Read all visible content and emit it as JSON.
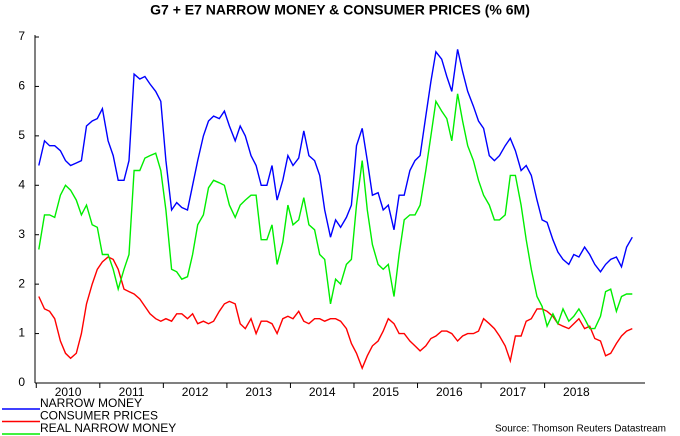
{
  "chart_data": {
    "type": "line",
    "title": "G7 + E7 NARROW MONEY & CONSUMER PRICES (% 6M)",
    "source": "Source: Thomson Reuters Datastream",
    "x": [
      2010.04,
      2010.13,
      2010.21,
      2010.29,
      2010.38,
      2010.46,
      2010.54,
      2010.63,
      2010.71,
      2010.79,
      2010.88,
      2010.96,
      2011.04,
      2011.13,
      2011.21,
      2011.29,
      2011.38,
      2011.46,
      2011.54,
      2011.63,
      2011.71,
      2011.79,
      2011.88,
      2011.96,
      2012.04,
      2012.13,
      2012.21,
      2012.29,
      2012.38,
      2012.46,
      2012.54,
      2012.63,
      2012.71,
      2012.79,
      2012.88,
      2012.96,
      2013.04,
      2013.13,
      2013.21,
      2013.29,
      2013.38,
      2013.46,
      2013.54,
      2013.63,
      2013.71,
      2013.79,
      2013.88,
      2013.96,
      2014.04,
      2014.13,
      2014.21,
      2014.29,
      2014.38,
      2014.46,
      2014.54,
      2014.63,
      2014.71,
      2014.79,
      2014.88,
      2014.96,
      2015.04,
      2015.13,
      2015.21,
      2015.29,
      2015.38,
      2015.46,
      2015.54,
      2015.63,
      2015.71,
      2015.79,
      2015.88,
      2015.96,
      2016.04,
      2016.13,
      2016.21,
      2016.29,
      2016.38,
      2016.46,
      2016.54,
      2016.63,
      2016.71,
      2016.79,
      2016.88,
      2016.96,
      2017.04,
      2017.13,
      2017.21,
      2017.29,
      2017.38,
      2017.46,
      2017.54,
      2017.63,
      2017.71,
      2017.79,
      2017.88,
      2017.96,
      2018.04,
      2018.13,
      2018.21,
      2018.29,
      2018.38,
      2018.46,
      2018.54,
      2018.63,
      2018.71,
      2018.79,
      2018.88,
      2018.96,
      2019.04,
      2019.13,
      2019.21,
      2019.29,
      2019.38
    ],
    "series": [
      {
        "name": "NARROW MONEY",
        "color": "#0000ff",
        "values": [
          4.4,
          4.9,
          4.8,
          4.8,
          4.7,
          4.5,
          4.4,
          4.45,
          4.5,
          5.2,
          5.3,
          5.35,
          5.55,
          4.9,
          4.6,
          4.1,
          4.1,
          4.5,
          6.25,
          6.15,
          6.2,
          6.05,
          5.9,
          5.7,
          4.5,
          3.5,
          3.65,
          3.55,
          3.5,
          4.0,
          4.5,
          5.0,
          5.3,
          5.4,
          5.35,
          5.5,
          5.2,
          4.9,
          5.2,
          5.0,
          4.6,
          4.4,
          4.0,
          4.0,
          4.4,
          3.7,
          4.1,
          4.6,
          4.4,
          4.55,
          5.1,
          4.6,
          4.5,
          4.2,
          3.5,
          2.95,
          3.3,
          3.15,
          3.35,
          3.6,
          4.8,
          5.15,
          4.5,
          3.8,
          3.85,
          3.5,
          3.6,
          3.1,
          3.8,
          3.8,
          4.3,
          4.5,
          4.6,
          5.4,
          6.1,
          6.7,
          6.55,
          6.2,
          5.9,
          6.75,
          6.3,
          5.9,
          5.6,
          5.3,
          5.15,
          4.6,
          4.5,
          4.6,
          4.8,
          4.95,
          4.7,
          4.3,
          4.4,
          4.2,
          3.7,
          3.3,
          3.25,
          2.9,
          2.65,
          2.5,
          2.4,
          2.6,
          2.55,
          2.75,
          2.6,
          2.4,
          2.25,
          2.4,
          2.5,
          2.55,
          2.35,
          2.75,
          2.95
        ]
      },
      {
        "name": "CONSUMER PRICES",
        "color": "#ff0000",
        "values": [
          1.75,
          1.5,
          1.45,
          1.3,
          0.85,
          0.6,
          0.5,
          0.6,
          1.0,
          1.6,
          2.0,
          2.3,
          2.45,
          2.55,
          2.5,
          2.3,
          1.9,
          1.85,
          1.8,
          1.7,
          1.55,
          1.4,
          1.3,
          1.25,
          1.3,
          1.25,
          1.4,
          1.4,
          1.3,
          1.4,
          1.2,
          1.25,
          1.2,
          1.25,
          1.45,
          1.6,
          1.65,
          1.6,
          1.2,
          1.1,
          1.3,
          1.0,
          1.25,
          1.25,
          1.2,
          1.0,
          1.3,
          1.35,
          1.3,
          1.45,
          1.25,
          1.2,
          1.3,
          1.3,
          1.25,
          1.3,
          1.3,
          1.25,
          1.1,
          0.8,
          0.6,
          0.3,
          0.55,
          0.75,
          0.85,
          1.05,
          1.3,
          1.2,
          1.0,
          1.0,
          0.85,
          0.75,
          0.65,
          0.75,
          0.9,
          0.95,
          1.05,
          1.05,
          1.0,
          0.85,
          0.95,
          1.0,
          1.0,
          1.05,
          1.3,
          1.2,
          1.1,
          0.95,
          0.75,
          0.45,
          0.95,
          0.95,
          1.25,
          1.3,
          1.5,
          1.5,
          1.45,
          1.35,
          1.2,
          1.15,
          1.1,
          1.2,
          1.3,
          1.1,
          1.15,
          0.9,
          0.85,
          0.55,
          0.6,
          0.8,
          0.95,
          1.05,
          1.1
        ]
      },
      {
        "name": "REAL NARROW MONEY",
        "color": "#00ee00",
        "values": [
          2.7,
          3.4,
          3.4,
          3.35,
          3.8,
          4.0,
          3.9,
          3.7,
          3.4,
          3.6,
          3.2,
          3.15,
          2.6,
          2.6,
          2.3,
          1.9,
          2.3,
          2.6,
          4.3,
          4.3,
          4.55,
          4.6,
          4.65,
          4.3,
          3.5,
          2.3,
          2.25,
          2.1,
          2.15,
          2.6,
          3.2,
          3.4,
          3.95,
          4.1,
          4.05,
          4.0,
          3.6,
          3.35,
          3.6,
          3.7,
          3.8,
          3.8,
          2.9,
          2.9,
          3.2,
          2.4,
          2.85,
          3.6,
          3.2,
          3.3,
          3.75,
          3.2,
          3.1,
          2.6,
          2.5,
          1.6,
          2.1,
          2.0,
          2.4,
          2.5,
          3.6,
          4.5,
          3.5,
          2.8,
          2.4,
          2.3,
          2.4,
          1.75,
          2.6,
          3.3,
          3.4,
          3.4,
          3.6,
          4.3,
          5.0,
          5.7,
          5.5,
          5.35,
          4.9,
          5.85,
          5.3,
          4.8,
          4.5,
          4.1,
          3.8,
          3.6,
          3.3,
          3.3,
          3.4,
          4.2,
          4.2,
          3.6,
          2.9,
          2.3,
          1.75,
          1.55,
          1.15,
          1.4,
          1.2,
          1.5,
          1.25,
          1.35,
          1.5,
          1.3,
          1.1,
          1.1,
          1.35,
          1.85,
          1.9,
          1.45,
          1.75,
          1.8,
          1.8
        ]
      }
    ],
    "xlim": [
      2009.98,
      2019.58
    ],
    "xticks": [
      {
        "value": 2010,
        "label": "2010"
      },
      {
        "value": 2011,
        "label": "2011"
      },
      {
        "value": 2012,
        "label": "2012"
      },
      {
        "value": 2013,
        "label": "2013"
      },
      {
        "value": 2014,
        "label": "2014"
      },
      {
        "value": 2015,
        "label": "2015"
      },
      {
        "value": 2016,
        "label": "2016"
      },
      {
        "value": 2017,
        "label": "2017"
      },
      {
        "value": 2018,
        "label": "2018"
      }
    ],
    "ylim": [
      0,
      7
    ],
    "yticks": [
      0,
      1,
      2,
      3,
      4,
      5,
      6,
      7
    ],
    "legend": "bottom-left"
  }
}
